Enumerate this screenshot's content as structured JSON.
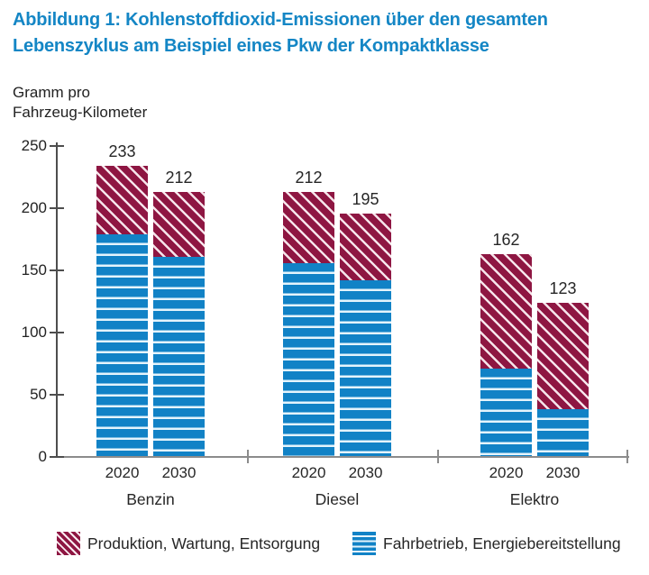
{
  "figure": {
    "title_lines": [
      "Abbildung 1: Kohlenstoffdioxid-Emissionen über den gesamten",
      "Lebenszyklus am Beispiel eines Pkw der Kompaktklasse"
    ],
    "unit_label_lines": [
      "Gramm pro",
      "Fahrzeug-Kilometer"
    ]
  },
  "colors": {
    "title": "#1486c5",
    "produktion": "#8e1642",
    "fahrbetrieb": "#1182c6",
    "text": "#262626",
    "y_axis": "#4d4d4d",
    "x_axis": "#8c8c8c"
  },
  "chart_data": {
    "type": "bar",
    "stacked": true,
    "title": "Kohlenstoffdioxid-Emissionen über den gesamten Lebenszyklus am Beispiel eines Pkw der Kompaktklasse",
    "ylabel": "Gramm pro Fahrzeug-Kilometer",
    "xlabel": "",
    "ylim": [
      0,
      250
    ],
    "yticks": [
      0,
      50,
      100,
      150,
      200,
      250
    ],
    "grid": false,
    "legend_position": "bottom",
    "series_order_bottom_to_top": [
      "Fahrbetrieb, Energiebereitstellung",
      "Produktion, Wartung, Entsorgung"
    ],
    "groups": [
      {
        "label": "Benzin",
        "bars": [
          {
            "category": "2020",
            "total": 233,
            "segments": {
              "fahrbetrieb": 178,
              "produktion": 55
            }
          },
          {
            "category": "2030",
            "total": 212,
            "segments": {
              "fahrbetrieb": 160,
              "produktion": 52
            }
          }
        ]
      },
      {
        "label": "Diesel",
        "bars": [
          {
            "category": "2020",
            "total": 212,
            "segments": {
              "fahrbetrieb": 155,
              "produktion": 57
            }
          },
          {
            "category": "2030",
            "total": 195,
            "segments": {
              "fahrbetrieb": 141,
              "produktion": 54
            }
          }
        ]
      },
      {
        "label": "Elektro",
        "bars": [
          {
            "category": "2020",
            "total": 162,
            "segments": {
              "fahrbetrieb": 70,
              "produktion": 92
            }
          },
          {
            "category": "2030",
            "total": 123,
            "segments": {
              "fahrbetrieb": 38,
              "produktion": 85
            }
          }
        ]
      }
    ]
  },
  "legend": {
    "items": [
      {
        "label": "Produktion, Wartung, Entsorgung",
        "series": "produktion",
        "pattern": "diagonal-stripes"
      },
      {
        "label": "Fahrbetrieb, Energiebereitstellung",
        "series": "fahrbetrieb",
        "pattern": "horizontal-stripes"
      }
    ]
  }
}
